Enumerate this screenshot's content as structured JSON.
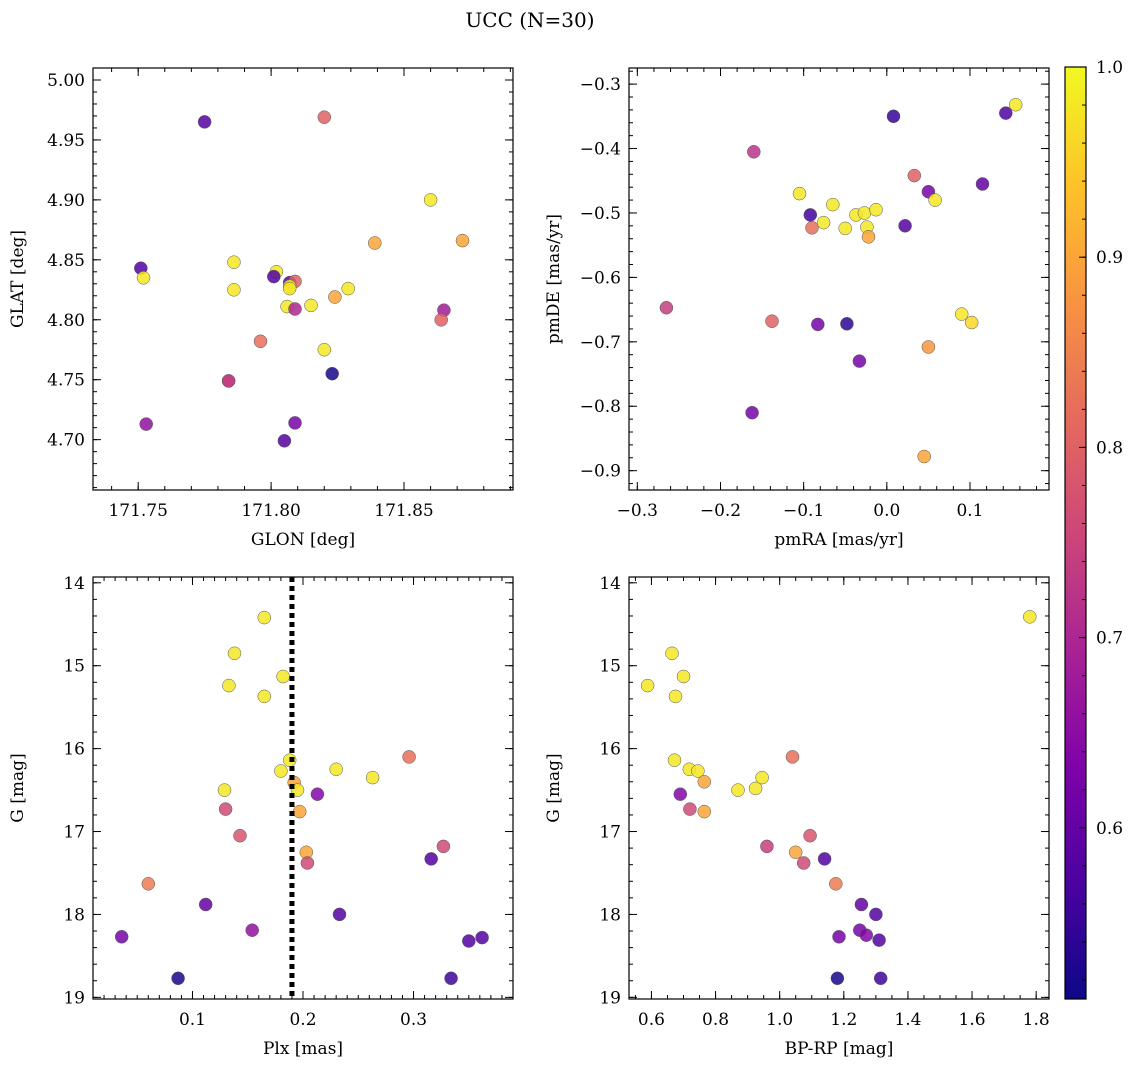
{
  "figure_title": "UCC (N=30)",
  "colorbar": {
    "range": [
      0.51,
      1.0
    ],
    "ticks": [
      0.6,
      0.7,
      0.8,
      0.9,
      1.0
    ],
    "tick_labels": [
      "0.6",
      "0.7",
      "0.8",
      "0.9",
      "1.0"
    ],
    "colormap": "plasma"
  },
  "chart_data": [
    {
      "type": "scatter",
      "id": "glon-glat",
      "xlabel": "GLON [deg]",
      "ylabel": "GLAT [deg]",
      "xlim": [
        171.733,
        171.891
      ],
      "ylim": [
        4.658,
        5.01
      ],
      "xticks": [
        171.75,
        171.8,
        171.85
      ],
      "xtick_labels": [
        "171.75",
        "171.80",
        "171.85"
      ],
      "yticks": [
        4.7,
        4.75,
        4.8,
        4.85,
        4.9,
        4.95,
        5.0
      ],
      "ytick_labels": [
        "4.70",
        "4.75",
        "4.80",
        "4.85",
        "4.90",
        "4.95",
        "5.00"
      ],
      "x": [
        171.775,
        171.82,
        171.751,
        171.752,
        171.786,
        171.786,
        171.802,
        171.801,
        171.807,
        171.809,
        171.806,
        171.807,
        171.809,
        171.815,
        171.824,
        171.829,
        171.839,
        171.86,
        171.872,
        171.865,
        171.864,
        171.796,
        171.784,
        171.784,
        171.753,
        171.82,
        171.823,
        171.805,
        171.809,
        171.807
      ],
      "y": [
        4.965,
        4.969,
        4.843,
        4.835,
        4.848,
        4.825,
        4.84,
        4.836,
        4.831,
        4.832,
        4.811,
        4.828,
        4.809,
        4.812,
        4.819,
        4.826,
        4.864,
        4.9,
        4.866,
        4.808,
        4.8,
        4.782,
        4.749,
        4.749,
        4.713,
        4.775,
        4.755,
        4.699,
        4.714,
        4.826
      ],
      "c": [
        0.58,
        0.8,
        0.58,
        0.98,
        0.98,
        0.98,
        0.98,
        0.58,
        0.58,
        0.8,
        0.98,
        0.98,
        0.7,
        0.98,
        0.9,
        0.98,
        0.9,
        0.98,
        0.9,
        0.68,
        0.8,
        0.82,
        0.72,
        0.74,
        0.66,
        0.98,
        0.52,
        0.58,
        0.62,
        0.98
      ]
    },
    {
      "type": "scatter",
      "id": "pmra-pmde",
      "xlabel": "pmRA [mas/yr]",
      "ylabel": "pmDE [mas/yr]",
      "xlim": [
        -0.31,
        0.195
      ],
      "ylim": [
        -0.93,
        -0.275
      ],
      "xticks": [
        -0.3,
        -0.2,
        -0.1,
        0.0,
        0.1
      ],
      "xtick_labels": [
        "−0.3",
        "−0.2",
        "−0.1",
        "0.0",
        "0.1"
      ],
      "yticks": [
        -0.9,
        -0.8,
        -0.7,
        -0.6,
        -0.5,
        -0.4,
        -0.3
      ],
      "ytick_labels": [
        "−0.9",
        "−0.8",
        "−0.7",
        "−0.6",
        "−0.5",
        "−0.4",
        "−0.3"
      ],
      "x": [
        0.155,
        0.143,
        0.008,
        -0.16,
        0.033,
        0.115,
        0.05,
        -0.105,
        -0.065,
        -0.092,
        -0.09,
        -0.076,
        -0.05,
        -0.037,
        -0.027,
        -0.024,
        -0.013,
        0.022,
        0.058,
        -0.022,
        -0.265,
        -0.138,
        -0.083,
        -0.048,
        0.09,
        0.102,
        0.05,
        -0.033,
        -0.162,
        0.045
      ],
      "y": [
        -0.332,
        -0.345,
        -0.35,
        -0.405,
        -0.442,
        -0.455,
        -0.467,
        -0.47,
        -0.487,
        -0.503,
        -0.523,
        -0.515,
        -0.524,
        -0.503,
        -0.5,
        -0.522,
        -0.495,
        -0.52,
        -0.48,
        -0.537,
        -0.647,
        -0.668,
        -0.673,
        -0.672,
        -0.657,
        -0.67,
        -0.708,
        -0.73,
        -0.81,
        -0.878
      ],
      "c": [
        0.98,
        0.58,
        0.55,
        0.72,
        0.8,
        0.6,
        0.62,
        0.98,
        0.98,
        0.56,
        0.82,
        0.98,
        0.98,
        0.98,
        0.98,
        0.98,
        0.98,
        0.58,
        0.98,
        0.9,
        0.74,
        0.8,
        0.62,
        0.54,
        0.98,
        0.96,
        0.88,
        0.62,
        0.62,
        0.9
      ]
    },
    {
      "type": "scatter",
      "id": "plx-g",
      "xlabel": "Plx [mas]",
      "ylabel": "G [mag]",
      "xlim": [
        0.01,
        0.39
      ],
      "ylim": [
        19.02,
        13.93
      ],
      "y_inverted": true,
      "vline": 0.19,
      "xticks": [
        0.1,
        0.2,
        0.3
      ],
      "xtick_labels": [
        "0.1",
        "0.2",
        "0.3"
      ],
      "yticks": [
        14,
        15,
        16,
        17,
        18,
        19
      ],
      "ytick_labels": [
        "14",
        "15",
        "16",
        "17",
        "18",
        "19"
      ],
      "x": [
        0.165,
        0.138,
        0.133,
        0.165,
        0.182,
        0.188,
        0.192,
        0.195,
        0.129,
        0.23,
        0.263,
        0.296,
        0.18,
        0.197,
        0.13,
        0.143,
        0.213,
        0.203,
        0.204,
        0.327,
        0.316,
        0.06,
        0.112,
        0.036,
        0.154,
        0.233,
        0.087,
        0.334,
        0.35,
        0.362
      ],
      "y": [
        14.42,
        14.85,
        15.24,
        15.37,
        15.13,
        16.14,
        16.41,
        16.5,
        16.5,
        16.25,
        16.35,
        16.1,
        16.27,
        16.76,
        16.73,
        17.05,
        16.55,
        17.25,
        17.38,
        17.18,
        17.33,
        17.63,
        17.88,
        18.27,
        18.19,
        18.0,
        18.77,
        18.77,
        18.32,
        18.28
      ],
      "c": [
        0.98,
        0.98,
        0.98,
        0.98,
        0.98,
        0.98,
        0.9,
        0.98,
        0.98,
        0.98,
        0.98,
        0.82,
        0.98,
        0.9,
        0.76,
        0.78,
        0.64,
        0.9,
        0.76,
        0.76,
        0.58,
        0.84,
        0.6,
        0.62,
        0.66,
        0.58,
        0.52,
        0.56,
        0.58,
        0.58
      ]
    },
    {
      "type": "scatter",
      "id": "bprp-g",
      "xlabel": "BP-RP [mag]",
      "ylabel": "G [mag]",
      "xlim": [
        0.53,
        1.84
      ],
      "ylim": [
        19.02,
        13.93
      ],
      "y_inverted": true,
      "xticks": [
        0.6,
        0.8,
        1.0,
        1.2,
        1.4,
        1.6,
        1.8
      ],
      "xtick_labels": [
        "0.6",
        "0.8",
        "1.0",
        "1.2",
        "1.4",
        "1.6",
        "1.8"
      ],
      "yticks": [
        14,
        15,
        16,
        17,
        18,
        19
      ],
      "ytick_labels": [
        "14",
        "15",
        "16",
        "17",
        "18",
        "19"
      ],
      "x": [
        1.78,
        0.664,
        0.7,
        0.588,
        0.675,
        0.672,
        0.718,
        0.745,
        0.765,
        0.87,
        0.925,
        0.945,
        1.04,
        0.765,
        0.69,
        0.72,
        1.095,
        1.05,
        0.96,
        1.075,
        1.14,
        1.175,
        1.255,
        1.3,
        1.25,
        1.27,
        1.31,
        1.185,
        1.18,
        1.315
      ],
      "y": [
        14.41,
        14.85,
        15.13,
        15.24,
        15.37,
        16.14,
        16.25,
        16.27,
        16.4,
        16.5,
        16.48,
        16.35,
        16.1,
        16.76,
        16.55,
        16.73,
        17.05,
        17.25,
        17.18,
        17.38,
        17.33,
        17.63,
        17.88,
        18.0,
        18.19,
        18.25,
        18.31,
        18.27,
        18.77,
        18.77
      ],
      "c": [
        0.98,
        0.98,
        0.98,
        0.98,
        0.98,
        0.98,
        0.98,
        0.98,
        0.9,
        0.98,
        0.98,
        0.98,
        0.82,
        0.9,
        0.64,
        0.76,
        0.78,
        0.9,
        0.74,
        0.76,
        0.58,
        0.84,
        0.6,
        0.58,
        0.62,
        0.64,
        0.58,
        0.62,
        0.52,
        0.56
      ]
    }
  ]
}
